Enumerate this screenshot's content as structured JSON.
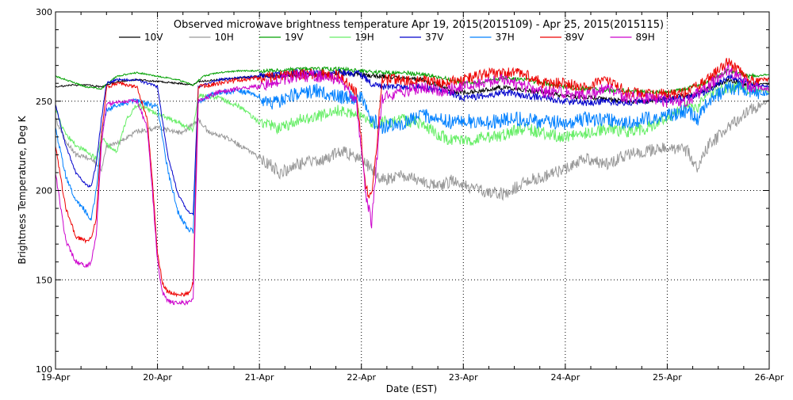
{
  "chart_data": {
    "type": "line",
    "title": "Observed microwave brightness temperature Apr 19, 2015(2015109) - Apr 25, 2015(2015115)",
    "xlabel": "Date (EST)",
    "ylabel": "Brightness Temperature, Deg K",
    "xlim": [
      0,
      7
    ],
    "ylim": [
      100,
      300
    ],
    "yticks": [
      100,
      150,
      200,
      250,
      300
    ],
    "xtick_positions": [
      0,
      1,
      2,
      3,
      4,
      5,
      6,
      7
    ],
    "xtick_labels": [
      "19-Apr",
      "20-Apr",
      "21-Apr",
      "22-Apr",
      "23-Apr",
      "24-Apr",
      "25-Apr",
      "26-Apr"
    ],
    "grid": true,
    "legend_position": "top",
    "series": [
      {
        "name": "10V",
        "color": "#000000",
        "x": [
          0,
          0.15,
          0.3,
          0.45,
          0.6,
          0.8,
          1.0,
          1.2,
          1.35,
          1.4,
          1.6,
          1.8,
          2.0,
          2.2,
          2.4,
          2.6,
          2.8,
          3.0,
          3.1,
          3.2,
          3.4,
          3.6,
          3.8,
          3.9,
          4.0,
          4.2,
          4.4,
          4.6,
          4.8,
          5.0,
          5.2,
          5.4,
          5.6,
          5.8,
          6.0,
          6.2,
          6.4,
          6.6,
          6.8,
          7.0
        ],
        "y": [
          258,
          259,
          259,
          258,
          261,
          262,
          261,
          260,
          259,
          261,
          262,
          263,
          264,
          264,
          265,
          265,
          266,
          265,
          264,
          264,
          263,
          262,
          258,
          255,
          255,
          256,
          258,
          256,
          255,
          253,
          252,
          251,
          250,
          250,
          252,
          253,
          257,
          262,
          259,
          260
        ]
      },
      {
        "name": "10H",
        "color": "#999999",
        "x": [
          0,
          0.1,
          0.2,
          0.35,
          0.45,
          0.5,
          0.6,
          0.8,
          1.0,
          1.1,
          1.25,
          1.4,
          1.5,
          1.7,
          1.9,
          2.0,
          2.1,
          2.2,
          2.4,
          2.6,
          2.8,
          3.0,
          3.1,
          3.2,
          3.4,
          3.6,
          3.8,
          3.9,
          4.0,
          4.2,
          4.4,
          4.6,
          4.8,
          5.0,
          5.2,
          5.4,
          5.6,
          5.8,
          6.0,
          6.2,
          6.3,
          6.4,
          6.6,
          6.8,
          7.0
        ],
        "y": [
          240,
          228,
          220,
          218,
          212,
          225,
          226,
          233,
          235,
          234,
          232,
          240,
          233,
          229,
          222,
          218,
          215,
          210,
          215,
          217,
          222,
          218,
          212,
          206,
          208,
          205,
          203,
          206,
          203,
          200,
          198,
          205,
          208,
          212,
          218,
          215,
          220,
          222,
          225,
          222,
          212,
          225,
          235,
          245,
          250
        ]
      },
      {
        "name": "19V",
        "color": "#00a000",
        "x": [
          0,
          0.15,
          0.3,
          0.45,
          0.6,
          0.8,
          1.0,
          1.2,
          1.35,
          1.45,
          1.6,
          1.8,
          2.0,
          2.2,
          2.4,
          2.6,
          2.8,
          3.0,
          3.2,
          3.4,
          3.6,
          3.8,
          3.9,
          4.0,
          4.2,
          4.4,
          4.6,
          4.8,
          5.0,
          5.2,
          5.4,
          5.6,
          5.8,
          6.0,
          6.2,
          6.4,
          6.6,
          6.8,
          7.0
        ],
        "y": [
          264,
          261,
          258,
          257,
          264,
          266,
          264,
          262,
          259,
          264,
          266,
          267,
          267,
          267,
          268,
          268,
          268,
          267,
          266,
          266,
          265,
          263,
          262,
          260,
          261,
          263,
          262,
          260,
          258,
          257,
          256,
          256,
          255,
          255,
          257,
          261,
          267,
          264,
          265
        ]
      },
      {
        "name": "19H",
        "color": "#66ee66",
        "x": [
          0,
          0.1,
          0.2,
          0.3,
          0.4,
          0.45,
          0.5,
          0.6,
          0.7,
          0.8,
          1.0,
          1.2,
          1.35,
          1.4,
          1.6,
          1.8,
          2.0,
          2.2,
          2.4,
          2.6,
          2.8,
          3.0,
          3.1,
          3.2,
          3.4,
          3.6,
          3.8,
          3.9,
          4.0,
          4.2,
          4.4,
          4.6,
          4.8,
          5.0,
          5.2,
          5.4,
          5.6,
          5.8,
          6.0,
          6.2,
          6.3,
          6.4,
          6.6,
          6.8,
          7.0
        ],
        "y": [
          245,
          232,
          225,
          222,
          218,
          230,
          226,
          222,
          240,
          248,
          243,
          238,
          234,
          253,
          252,
          247,
          238,
          235,
          240,
          242,
          245,
          243,
          238,
          238,
          240,
          237,
          230,
          228,
          227,
          230,
          231,
          235,
          232,
          230,
          232,
          235,
          233,
          235,
          240,
          248,
          247,
          255,
          258,
          257,
          256
        ]
      },
      {
        "name": "37V",
        "color": "#0000cc",
        "x": [
          0,
          0.1,
          0.2,
          0.3,
          0.35,
          0.4,
          0.45,
          0.5,
          0.6,
          0.8,
          1.0,
          1.1,
          1.2,
          1.3,
          1.35,
          1.4,
          1.6,
          1.8,
          2.0,
          2.2,
          2.4,
          2.6,
          2.8,
          3.0,
          3.1,
          3.2,
          3.4,
          3.6,
          3.8,
          3.9,
          4.0,
          4.2,
          4.4,
          4.6,
          4.8,
          5.0,
          5.2,
          5.4,
          5.6,
          5.8,
          6.0,
          6.2,
          6.4,
          6.6,
          6.8,
          7.0
        ],
        "y": [
          248,
          225,
          210,
          203,
          202,
          215,
          240,
          260,
          262,
          262,
          258,
          220,
          198,
          188,
          187,
          258,
          262,
          263,
          264,
          265,
          266,
          265,
          266,
          265,
          260,
          258,
          258,
          258,
          256,
          254,
          252,
          253,
          255,
          253,
          252,
          250,
          249,
          250,
          249,
          250,
          251,
          252,
          256,
          264,
          260,
          258
        ]
      },
      {
        "name": "37H",
        "color": "#0080ff",
        "x": [
          0,
          0.1,
          0.2,
          0.3,
          0.35,
          0.4,
          0.45,
          0.5,
          0.6,
          0.8,
          1.0,
          1.1,
          1.2,
          1.3,
          1.35,
          1.4,
          1.6,
          1.8,
          2.0,
          2.1,
          2.2,
          2.4,
          2.6,
          2.8,
          3.0,
          3.1,
          3.2,
          3.4,
          3.6,
          3.8,
          3.9,
          4.0,
          4.2,
          4.4,
          4.6,
          4.8,
          5.0,
          5.2,
          5.4,
          5.6,
          5.8,
          6.0,
          6.2,
          6.3,
          6.4,
          6.6,
          6.8,
          7.0
        ],
        "y": [
          235,
          208,
          195,
          188,
          184,
          200,
          232,
          245,
          248,
          250,
          247,
          212,
          188,
          178,
          177,
          250,
          255,
          256,
          253,
          248,
          250,
          255,
          256,
          252,
          252,
          240,
          235,
          238,
          242,
          240,
          238,
          240,
          237,
          240,
          240,
          238,
          238,
          240,
          240,
          238,
          240,
          242,
          245,
          240,
          250,
          258,
          256,
          254
        ]
      },
      {
        "name": "89V",
        "color": "#ee0000",
        "x": [
          0,
          0.1,
          0.2,
          0.3,
          0.35,
          0.4,
          0.45,
          0.5,
          0.6,
          0.8,
          0.9,
          0.95,
          1.0,
          1.05,
          1.1,
          1.2,
          1.3,
          1.35,
          1.4,
          1.6,
          1.8,
          2.0,
          2.2,
          2.4,
          2.6,
          2.8,
          2.95,
          3.05,
          3.1,
          3.15,
          3.2,
          3.4,
          3.6,
          3.8,
          4.0,
          4.2,
          4.4,
          4.6,
          4.8,
          5.0,
          5.2,
          5.4,
          5.6,
          5.8,
          6.0,
          6.2,
          6.4,
          6.6,
          6.8,
          7.0
        ],
        "y": [
          225,
          190,
          174,
          172,
          173,
          185,
          230,
          258,
          260,
          258,
          240,
          205,
          165,
          148,
          143,
          142,
          142,
          148,
          258,
          260,
          262,
          263,
          264,
          265,
          265,
          264,
          255,
          200,
          196,
          225,
          262,
          262,
          262,
          260,
          262,
          265,
          266,
          265,
          260,
          260,
          258,
          262,
          255,
          254,
          254,
          255,
          262,
          272,
          262,
          262
        ]
      },
      {
        "name": "89H",
        "color": "#cc00cc",
        "x": [
          0,
          0.1,
          0.2,
          0.3,
          0.35,
          0.4,
          0.45,
          0.5,
          0.6,
          0.8,
          0.9,
          0.95,
          1.0,
          1.05,
          1.1,
          1.2,
          1.3,
          1.35,
          1.4,
          1.6,
          1.8,
          2.0,
          2.2,
          2.4,
          2.6,
          2.8,
          2.95,
          3.05,
          3.1,
          3.15,
          3.2,
          3.4,
          3.6,
          3.8,
          4.0,
          4.2,
          4.4,
          4.6,
          4.8,
          5.0,
          5.2,
          5.4,
          5.6,
          5.8,
          6.0,
          6.2,
          6.4,
          6.6,
          6.8,
          7.0
        ],
        "y": [
          210,
          172,
          160,
          158,
          160,
          175,
          225,
          248,
          250,
          250,
          235,
          200,
          160,
          143,
          138,
          137,
          137,
          140,
          250,
          255,
          257,
          258,
          262,
          264,
          264,
          262,
          250,
          195,
          182,
          215,
          252,
          255,
          258,
          256,
          258,
          260,
          262,
          258,
          255,
          255,
          253,
          257,
          252,
          252,
          250,
          250,
          258,
          268,
          258,
          257
        ]
      }
    ]
  }
}
